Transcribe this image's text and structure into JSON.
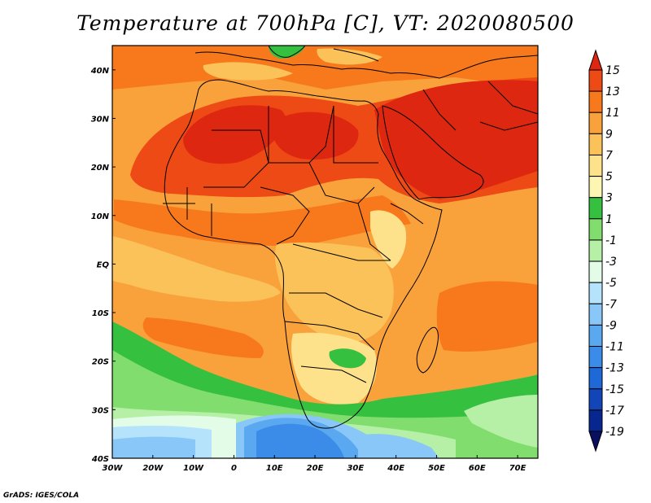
{
  "title": "Temperature at 700hPa [C], VT: 2020080500",
  "credit": "GrADS: IGES/COLA",
  "map": {
    "variable": "Temperature at 700hPa",
    "units": "C",
    "valid_time": "2020080500",
    "region": "Africa",
    "lon_range": [
      -30,
      75
    ],
    "lat_range": [
      -40,
      45
    ],
    "lon_ticks": [
      "30W",
      "20W",
      "10W",
      "0",
      "10E",
      "20E",
      "30E",
      "40E",
      "50E",
      "60E",
      "70E"
    ],
    "lat_ticks": [
      "40N",
      "30N",
      "20N",
      "10N",
      "EQ",
      "10S",
      "20S",
      "30S",
      "40S"
    ]
  },
  "colorbar": {
    "labels": [
      "15",
      "13",
      "11",
      "9",
      "7",
      "5",
      "3",
      "1",
      "-1",
      "-3",
      "-5",
      "-7",
      "-9",
      "-11",
      "-13",
      "-15",
      "-17",
      "-19"
    ],
    "colors": [
      "#dd2710",
      "#ee4a15",
      "#f7791c",
      "#f9a23c",
      "#fbc25a",
      "#fde28b",
      "#fdf5b2",
      "#36c040",
      "#80dd6e",
      "#b6f0a6",
      "#e2fce8",
      "#b6e3fc",
      "#88c7f8",
      "#5aa8f0",
      "#3a8ce8",
      "#1f68d8",
      "#1245b8",
      "#08268f",
      "#0a1060"
    ]
  }
}
